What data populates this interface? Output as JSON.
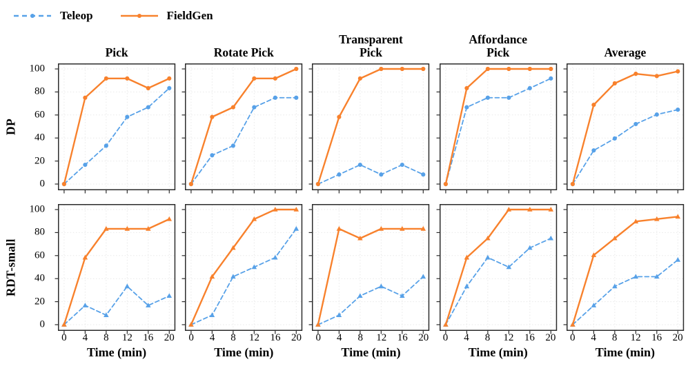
{
  "page": {
    "background": "#ffffff"
  },
  "colors": {
    "teleop": "#57A1E8",
    "fieldgen": "#F8812C",
    "axis": "#2a2a2a",
    "grid": "#e9e9e9",
    "text": "#000000"
  },
  "legend": {
    "items": [
      {
        "label": "Teleop",
        "color": "#57A1E8",
        "line_style": "dashed"
      },
      {
        "label": "FieldGen",
        "color": "#F8812C",
        "line_style": "solid"
      }
    ]
  },
  "chart_data": {
    "type": "line",
    "x": [
      0,
      4,
      8,
      12,
      16,
      20
    ],
    "xticks": [
      0,
      4,
      8,
      12,
      16,
      20
    ],
    "xlabel": "Time (min)",
    "ylim": [
      0,
      100
    ],
    "yticks": [
      0,
      20,
      40,
      60,
      80,
      100
    ],
    "grid": true,
    "legend_position": "top-left",
    "column_titles": [
      [
        "Pick"
      ],
      [
        "Rotate Pick"
      ],
      [
        "Transparent",
        "Pick"
      ],
      [
        "Affordance",
        "Pick"
      ],
      [
        "Average"
      ]
    ],
    "rows": [
      {
        "label": "DP",
        "marker": "circle",
        "subplots": [
          {
            "title": "Pick",
            "series": [
              {
                "name": "Teleop",
                "values": [
                  0,
                  16.7,
                  33.3,
                  58.3,
                  66.7,
                  83.3
                ]
              },
              {
                "name": "FieldGen",
                "values": [
                  0,
                  75,
                  91.7,
                  91.7,
                  83.3,
                  91.7
                ]
              }
            ]
          },
          {
            "title": "Rotate Pick",
            "series": [
              {
                "name": "Teleop",
                "values": [
                  0,
                  25,
                  33.3,
                  66.7,
                  75,
                  75
                ]
              },
              {
                "name": "FieldGen",
                "values": [
                  0,
                  58.3,
                  66.7,
                  91.7,
                  91.7,
                  100
                ]
              }
            ]
          },
          {
            "title": "Transparent Pick",
            "series": [
              {
                "name": "Teleop",
                "values": [
                  0,
                  8.3,
                  16.7,
                  8.3,
                  16.7,
                  8.3
                ]
              },
              {
                "name": "FieldGen",
                "values": [
                  0,
                  58.3,
                  91.7,
                  100,
                  100,
                  100
                ]
              }
            ]
          },
          {
            "title": "Affordance Pick",
            "series": [
              {
                "name": "Teleop",
                "values": [
                  0,
                  66.7,
                  75,
                  75,
                  83.3,
                  91.7
                ]
              },
              {
                "name": "FieldGen",
                "values": [
                  0,
                  83.3,
                  100,
                  100,
                  100,
                  100
                ]
              }
            ]
          },
          {
            "title": "Average",
            "series": [
              {
                "name": "Teleop",
                "values": [
                  0,
                  29.2,
                  39.6,
                  52.1,
                  60.4,
                  64.6
                ]
              },
              {
                "name": "FieldGen",
                "values": [
                  0,
                  68.8,
                  87.5,
                  95.8,
                  93.8,
                  97.9
                ]
              }
            ]
          }
        ]
      },
      {
        "label": "RDT-small",
        "marker": "triangle",
        "subplots": [
          {
            "title": "Pick",
            "series": [
              {
                "name": "Teleop",
                "values": [
                  0,
                  16.7,
                  8.3,
                  33.3,
                  16.7,
                  25
                ]
              },
              {
                "name": "FieldGen",
                "values": [
                  0,
                  58.3,
                  83.3,
                  83.3,
                  83.3,
                  91.7
                ]
              }
            ]
          },
          {
            "title": "Rotate Pick",
            "series": [
              {
                "name": "Teleop",
                "values": [
                  0,
                  8.3,
                  41.7,
                  50,
                  58.3,
                  83.3
                ]
              },
              {
                "name": "FieldGen",
                "values": [
                  0,
                  41.7,
                  66.7,
                  91.7,
                  100,
                  100
                ]
              }
            ]
          },
          {
            "title": "Transparent Pick",
            "series": [
              {
                "name": "Teleop",
                "values": [
                  0,
                  8.3,
                  25,
                  33.3,
                  25,
                  41.7
                ]
              },
              {
                "name": "FieldGen",
                "values": [
                  0,
                  83.3,
                  75,
                  83.3,
                  83.3,
                  83.3
                ]
              }
            ]
          },
          {
            "title": "Affordance Pick",
            "series": [
              {
                "name": "Teleop",
                "values": [
                  0,
                  33.3,
                  58.3,
                  50,
                  66.7,
                  75
                ]
              },
              {
                "name": "FieldGen",
                "values": [
                  0,
                  58.3,
                  75,
                  100,
                  100,
                  100
                ]
              }
            ]
          },
          {
            "title": "Average",
            "series": [
              {
                "name": "Teleop",
                "values": [
                  0,
                  16.7,
                  33.3,
                  41.7,
                  41.7,
                  56.3
                ]
              },
              {
                "name": "FieldGen",
                "values": [
                  0,
                  60.4,
                  75,
                  89.6,
                  91.7,
                  93.8
                ]
              }
            ]
          }
        ]
      }
    ]
  }
}
